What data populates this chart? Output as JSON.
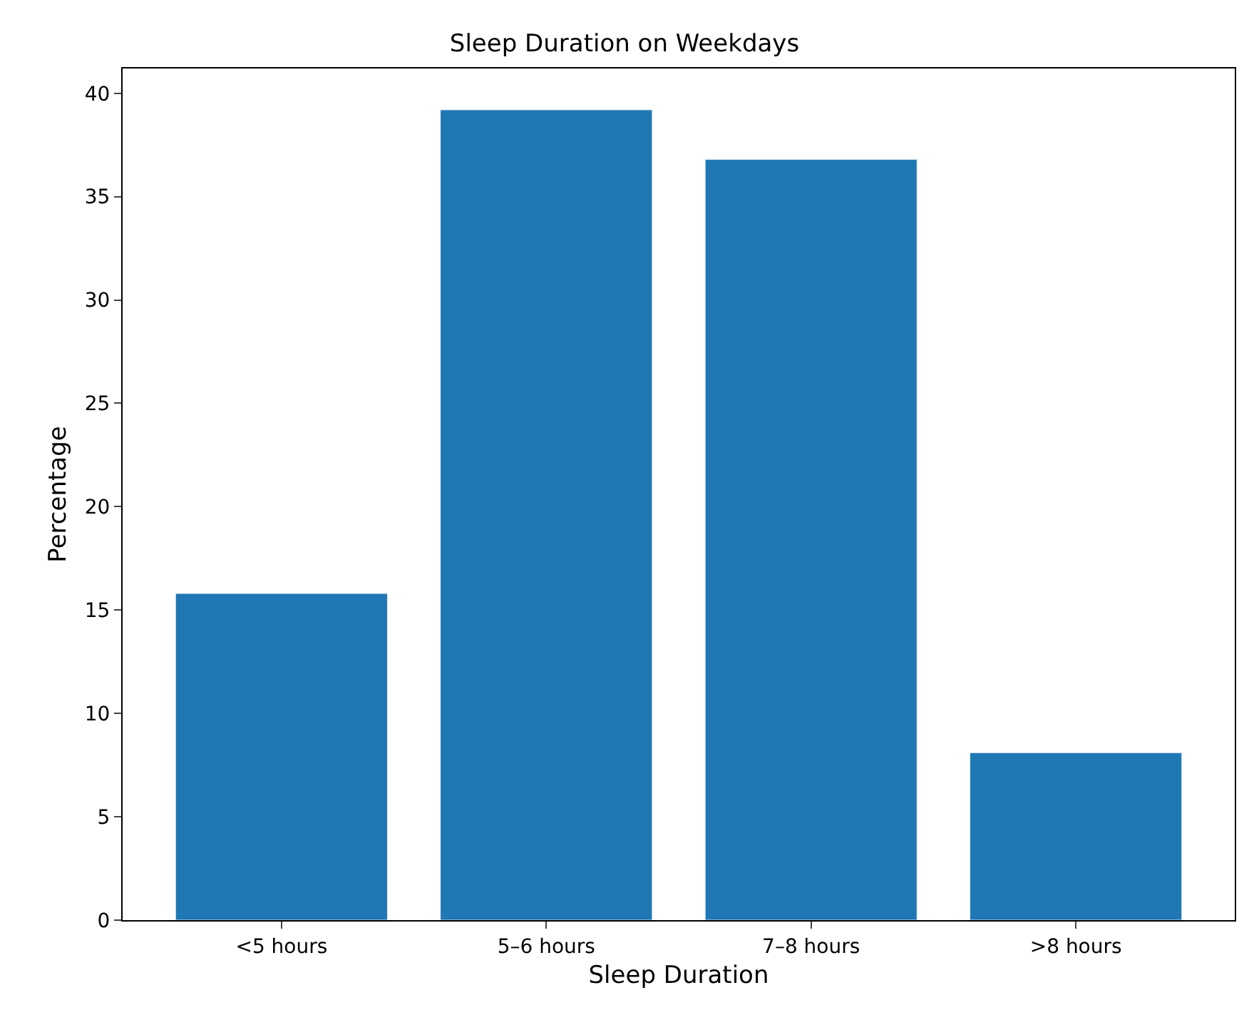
{
  "chart_data": {
    "type": "bar",
    "title": "Sleep Duration on Weekdays",
    "xlabel": "Sleep Duration",
    "ylabel": "Percentage",
    "categories": [
      "<5 hours",
      "5–6 hours",
      "7–8 hours",
      ">8 hours"
    ],
    "values": [
      15.8,
      39.2,
      36.8,
      8.1
    ],
    "color": "#1f77b4",
    "ylim": [
      0,
      41.2
    ],
    "yticks": [
      0,
      5,
      10,
      15,
      20,
      25,
      30,
      35,
      40
    ]
  }
}
